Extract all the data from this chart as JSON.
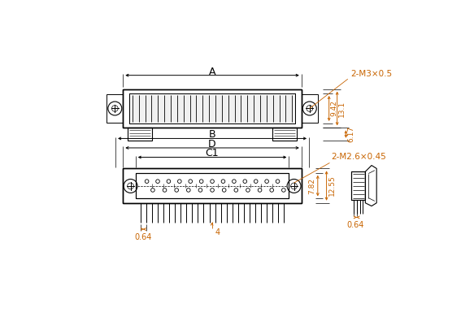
{
  "bg_color": "#ffffff",
  "line_color": "#000000",
  "dim_color": "#c86400",
  "fig_width": 5.83,
  "fig_height": 4.0,
  "dpi": 100,
  "labels": {
    "A": "A",
    "B": "B",
    "D": "D",
    "C1": "C1",
    "dim_942": "9.42",
    "dim_131": "13.1",
    "dim_617": "6.17",
    "dim_782": "7.82",
    "dim_1255": "12.55",
    "dim_064a": "0.64",
    "dim_064b": "0.64",
    "dim_4": "4",
    "note_M3": "2-M3×0.5",
    "note_M26": "2-M2.6×0.45"
  }
}
